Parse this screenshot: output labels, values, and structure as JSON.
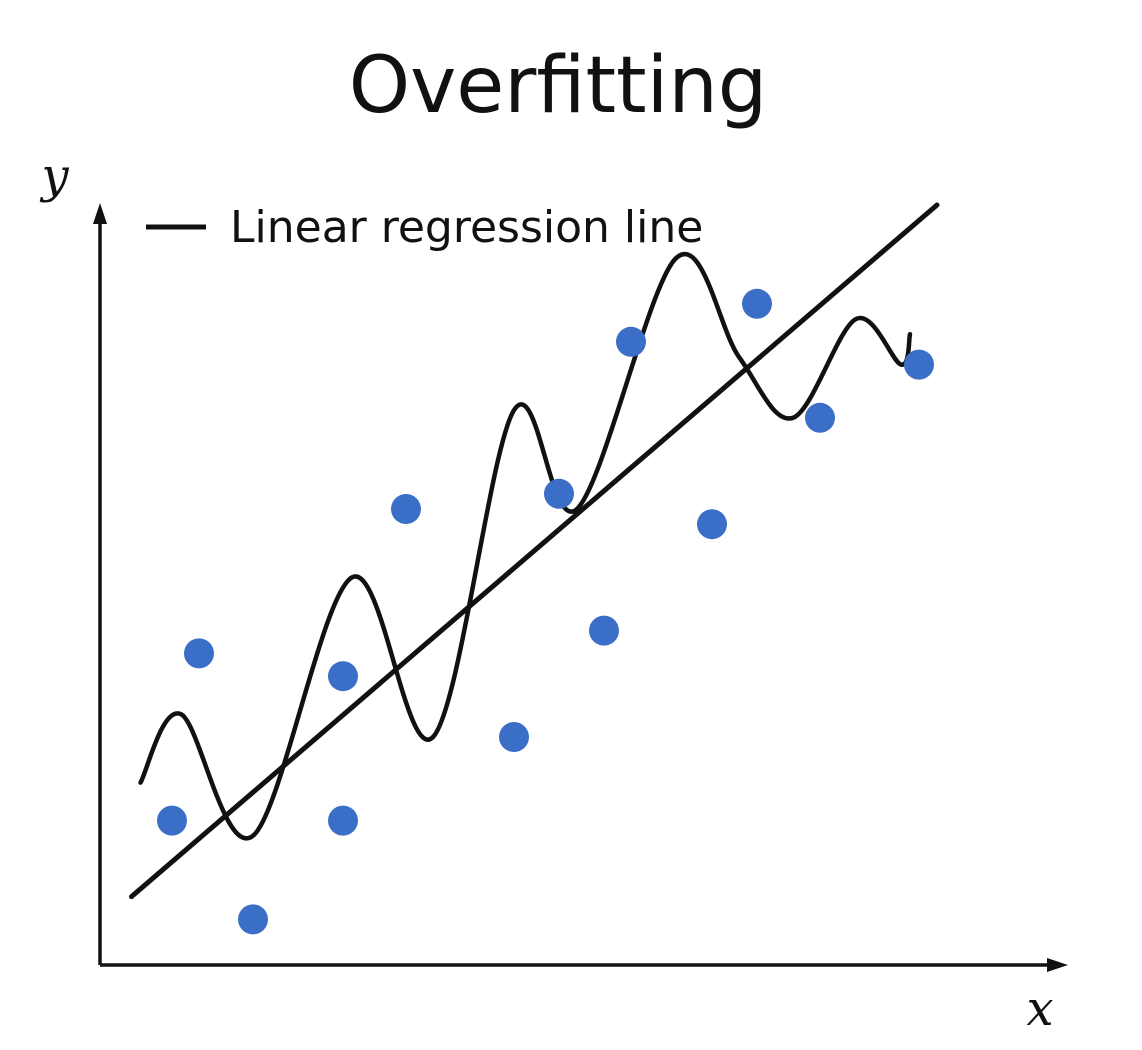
{
  "chart_data": {
    "type": "scatter",
    "title": "Overfitting",
    "xlabel": "x",
    "ylabel": "y",
    "grid": false,
    "legend": {
      "placement": "top-left",
      "entries": [
        {
          "label": "Linear regression line",
          "color": "#111111"
        }
      ]
    },
    "xlim": [
      0,
      10
    ],
    "ylim": [
      0,
      10
    ],
    "series": [
      {
        "kind": "points",
        "color": "#3b6fc7",
        "points": [
          {
            "x": 0.8,
            "y": 1.9
          },
          {
            "x": 1.1,
            "y": 4.1
          },
          {
            "x": 1.7,
            "y": 0.6
          },
          {
            "x": 2.7,
            "y": 1.9
          },
          {
            "x": 2.7,
            "y": 3.8
          },
          {
            "x": 3.4,
            "y": 6.0
          },
          {
            "x": 4.6,
            "y": 3.0
          },
          {
            "x": 5.1,
            "y": 6.2
          },
          {
            "x": 5.6,
            "y": 4.4
          },
          {
            "x": 5.9,
            "y": 8.2
          },
          {
            "x": 6.8,
            "y": 5.8
          },
          {
            "x": 7.3,
            "y": 8.7
          },
          {
            "x": 8.0,
            "y": 7.2
          },
          {
            "x": 9.1,
            "y": 7.9
          }
        ]
      },
      {
        "label": "Linear regression line",
        "kind": "line",
        "color": "#111111",
        "x": [
          0.35,
          9.3
        ],
        "y": [
          0.9,
          10.0
        ]
      },
      {
        "kind": "curve",
        "color": "#111111",
        "x": [
          0.45,
          0.9,
          1.7,
          2.8,
          3.7,
          4.6,
          5.3,
          6.4,
          7.1,
          7.7,
          8.4,
          8.9,
          9.0
        ],
        "y": [
          2.4,
          3.3,
          1.7,
          5.1,
          3.0,
          7.3,
          6.0,
          9.3,
          8.0,
          7.2,
          8.5,
          7.9,
          8.3
        ]
      }
    ]
  },
  "colors": {
    "points": "#3b6fc7",
    "lines": "#111111",
    "background": "#ffffff"
  }
}
